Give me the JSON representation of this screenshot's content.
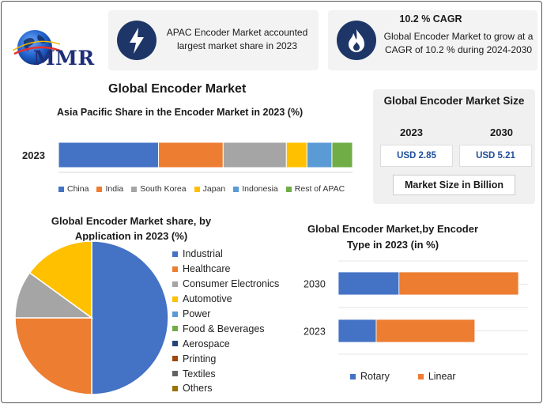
{
  "brand": {
    "logo_text": "MMR"
  },
  "card_share": {
    "text": "APAC Encoder Market accounted largest market share in 2023",
    "icon": "lightning-icon"
  },
  "card_cagr": {
    "title": "10.2 % CAGR",
    "text": "Global Encoder Market to grow at a CAGR of 10.2 % during 2024-2030",
    "icon": "flame-icon"
  },
  "main_title": "Global Encoder Market",
  "market_size": {
    "title": "Global Encoder Market Size",
    "years": [
      "2023",
      "2030"
    ],
    "values": [
      "USD 2.85",
      "USD 5.21"
    ],
    "unit": "Market Size in Billion"
  },
  "colors": {
    "accent": "#1d3667",
    "value_text": "#1f4e99"
  },
  "chart_data": [
    {
      "type": "bar",
      "orientation": "horizontal",
      "stacked": true,
      "title": "Asia Pacific Share in the Encoder Market in 2023 (%)",
      "categories": [
        "2023"
      ],
      "series": [
        {
          "name": "China",
          "values": [
            34
          ],
          "color": "#4472c4"
        },
        {
          "name": "India",
          "values": [
            22
          ],
          "color": "#ed7d31"
        },
        {
          "name": "South Korea",
          "values": [
            21.5
          ],
          "color": "#a5a5a5"
        },
        {
          "name": "Japan",
          "values": [
            7
          ],
          "color": "#ffc000"
        },
        {
          "name": "Indonesia",
          "values": [
            8.5
          ],
          "color": "#5b9bd5"
        },
        {
          "name": "Rest of APAC",
          "values": [
            7
          ],
          "color": "#70ad47"
        }
      ],
      "legend": "bottom"
    },
    {
      "type": "pie",
      "title": "Global Encoder Market share, by Application in 2023  (%)",
      "labels": [
        "Industrial",
        "Healthcare",
        "Consumer Electronics",
        "Automotive",
        "Power",
        "Food & Beverages",
        "Aerospace",
        "Printing",
        "Textiles",
        "Others"
      ],
      "values": [
        50,
        25,
        10,
        15,
        0,
        0,
        0,
        0,
        0,
        0
      ],
      "colors": [
        "#4472c4",
        "#ed7d31",
        "#a5a5a5",
        "#ffc000",
        "#5b9bd5",
        "#70ad47",
        "#264478",
        "#9e480e",
        "#636363",
        "#997300"
      ],
      "legend": "right"
    },
    {
      "type": "bar",
      "orientation": "horizontal",
      "stacked": true,
      "title": "Global Encoder Market,by Encoder Type in 2023 (in %)",
      "categories": [
        "2030",
        "2023"
      ],
      "series": [
        {
          "name": "Rotary",
          "values": [
            32,
            20
          ],
          "color": "#4472c4"
        },
        {
          "name": "Linear",
          "values": [
            63,
            52
          ],
          "color": "#ed7d31"
        }
      ],
      "xlim": [
        0,
        100
      ],
      "grid": true,
      "legend": "bottom"
    }
  ]
}
